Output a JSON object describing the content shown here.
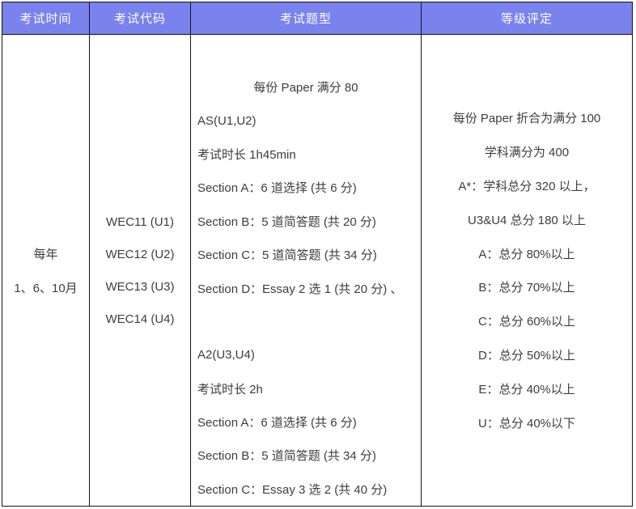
{
  "colors": {
    "header_background": "#7a82ee",
    "header_text": "#ffffff",
    "border": "#141414",
    "body_text": "#3d3d3d",
    "page_background": "#ffffff"
  },
  "table": {
    "columns": [
      {
        "label": "考试时间"
      },
      {
        "label": "考试代码"
      },
      {
        "label": "考试题型"
      },
      {
        "label": "等级评定"
      }
    ],
    "row": {
      "exam_time": [
        "每年",
        "1、6、10月"
      ],
      "exam_code": [
        "WEC11 (U1)",
        "WEC12 (U2)",
        "WEC13 (U3)",
        "WEC14 (U4)"
      ],
      "exam_format": [
        "每份 Paper 满分 80",
        "AS(U1,U2)",
        "考试时长 1h45min",
        "Section A：6 道选择 (共 6 分)",
        "Section B：5 道简答题 (共 20 分)",
        "Section C：5 道简答题 (共 34 分)",
        "Section D：Essay 2 选 1 (共 20 分) 、",
        "",
        "A2(U3,U4)",
        "考试时长 2h",
        "Section A：6 道选择 (共 6 分)",
        "Section B：5 道简答题 (共 34 分)",
        "Section C：Essay 3 选 2 (共 40 分)"
      ],
      "grading": [
        "每份 Paper 折合为满分 100",
        "学科满分为 400",
        "A*：学科总分 320 以上，",
        "U3&U4 总分 180 以上",
        "A：总分 80%以上",
        "B：总分 70%以上",
        "C：总分 60%以上",
        "D：总分 50%以上",
        "E：总分 40%以上",
        "U：总分 40%以下"
      ]
    }
  }
}
